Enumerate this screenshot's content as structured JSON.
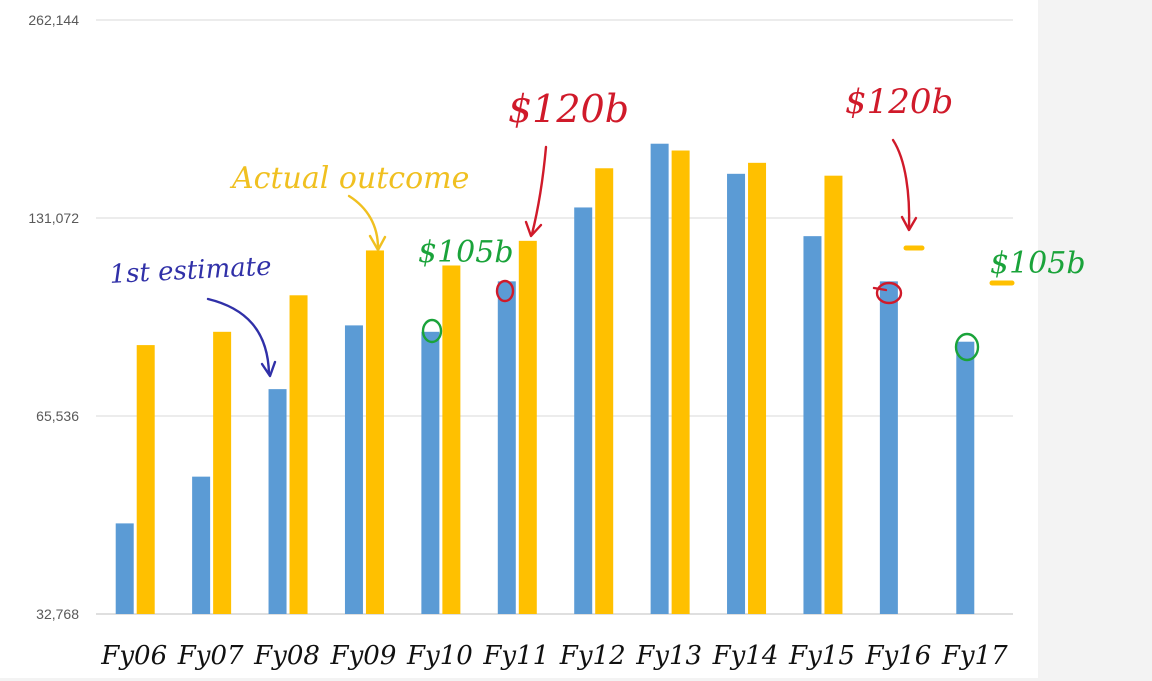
{
  "chart_data": {
    "type": "bar",
    "yscale": "log2",
    "ylim": [
      32768,
      262144
    ],
    "yticks": [
      32768,
      65536,
      131072,
      262144
    ],
    "ytick_labels": [
      "32,768",
      "65,536",
      "131,072",
      "262,144"
    ],
    "grid": true,
    "categories": [
      "Fy06",
      "Fy07",
      "Fy08",
      "Fy09",
      "Fy10",
      "Fy11",
      "Fy12",
      "Fy13",
      "Fy14",
      "Fy15",
      "Fy16",
      "Fy17"
    ],
    "series": [
      {
        "color": "#5b9bd5",
        "values": [
          45000,
          53000,
          72000,
          90000,
          88000,
          105000,
          136000,
          170000,
          153000,
          123000,
          105000,
          85000
        ]
      },
      {
        "color": "#ffc000",
        "values": [
          84000,
          88000,
          100000,
          117000,
          111000,
          121000,
          156000,
          166000,
          159000,
          152000,
          null,
          null
        ]
      }
    ],
    "annotations": [
      {
        "text": "1st estimate",
        "color": "#3030a8"
      },
      {
        "text": "Actual outcome",
        "color": "#f0c020"
      },
      {
        "text": "$105b",
        "color": "#1aa33a"
      },
      {
        "text": "$120b",
        "color": "#d01a2a"
      },
      {
        "text": "$120b",
        "color": "#d01a2a"
      },
      {
        "text": "$105b",
        "color": "#1aa33a"
      }
    ]
  }
}
